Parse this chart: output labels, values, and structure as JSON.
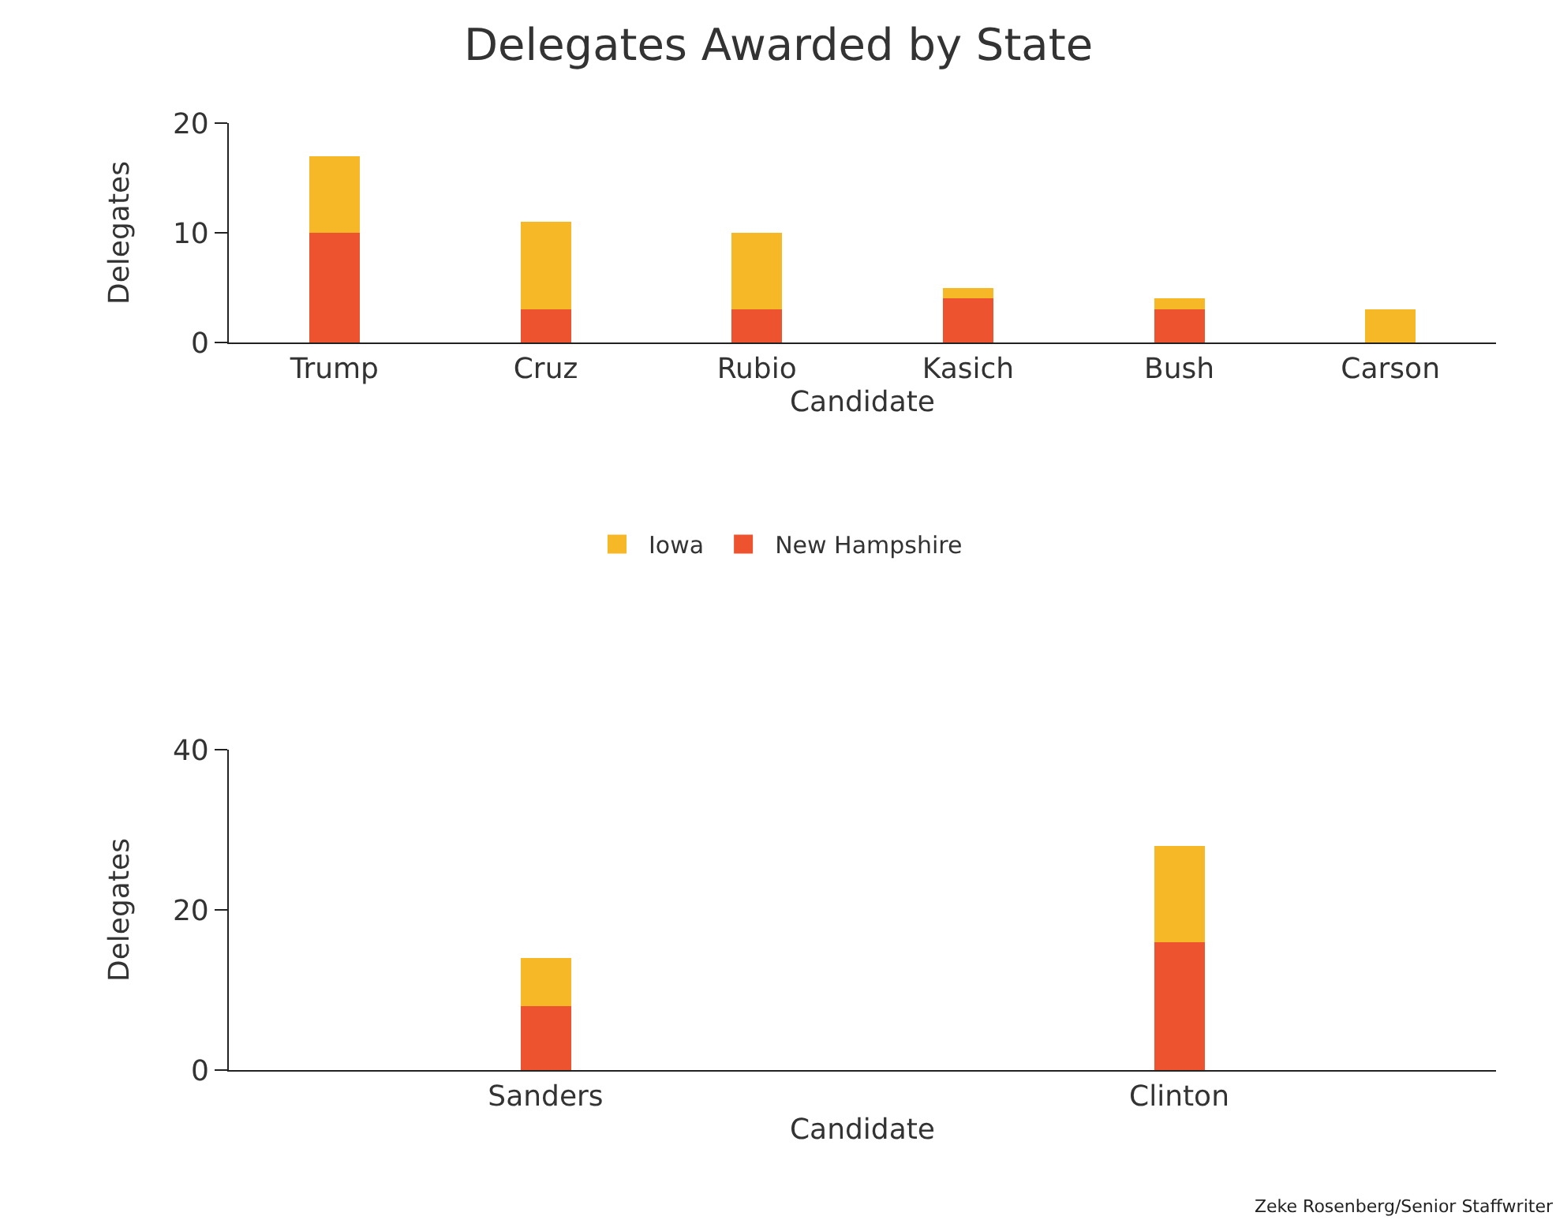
{
  "chart_data": [
    {
      "type": "bar",
      "title": "Delegates Awarded by State",
      "xlabel": "Candidate",
      "ylabel": "Delegates",
      "categories": [
        "Trump",
        "Cruz",
        "Rubio",
        "Kasich",
        "Bush",
        "Carson"
      ],
      "stacked": true,
      "legend": "bottom",
      "series": [
        {
          "name": "New Hampshire",
          "color": "#ee5330",
          "values": [
            10,
            3,
            3,
            4,
            3,
            0
          ]
        },
        {
          "name": "Iowa",
          "color": "#f6b826",
          "values": [
            7,
            8,
            7,
            1,
            1,
            3
          ]
        }
      ],
      "ylim": [
        0,
        20
      ],
      "yticks": [
        0,
        10,
        20
      ]
    },
    {
      "type": "bar",
      "xlabel": "Candidate",
      "ylabel": "Delegates",
      "categories": [
        "Sanders",
        "Clinton"
      ],
      "stacked": true,
      "legend": false,
      "series": [
        {
          "color": "#ee5330",
          "values": [
            8,
            16
          ]
        },
        {
          "color": "#f6b826",
          "values": [
            6,
            12
          ]
        }
      ],
      "ylim": [
        0,
        40
      ],
      "yticks": [
        0,
        20,
        40
      ],
      "annotations": [
        "Zeke Rosenberg/Senior Staffwriter"
      ]
    }
  ]
}
